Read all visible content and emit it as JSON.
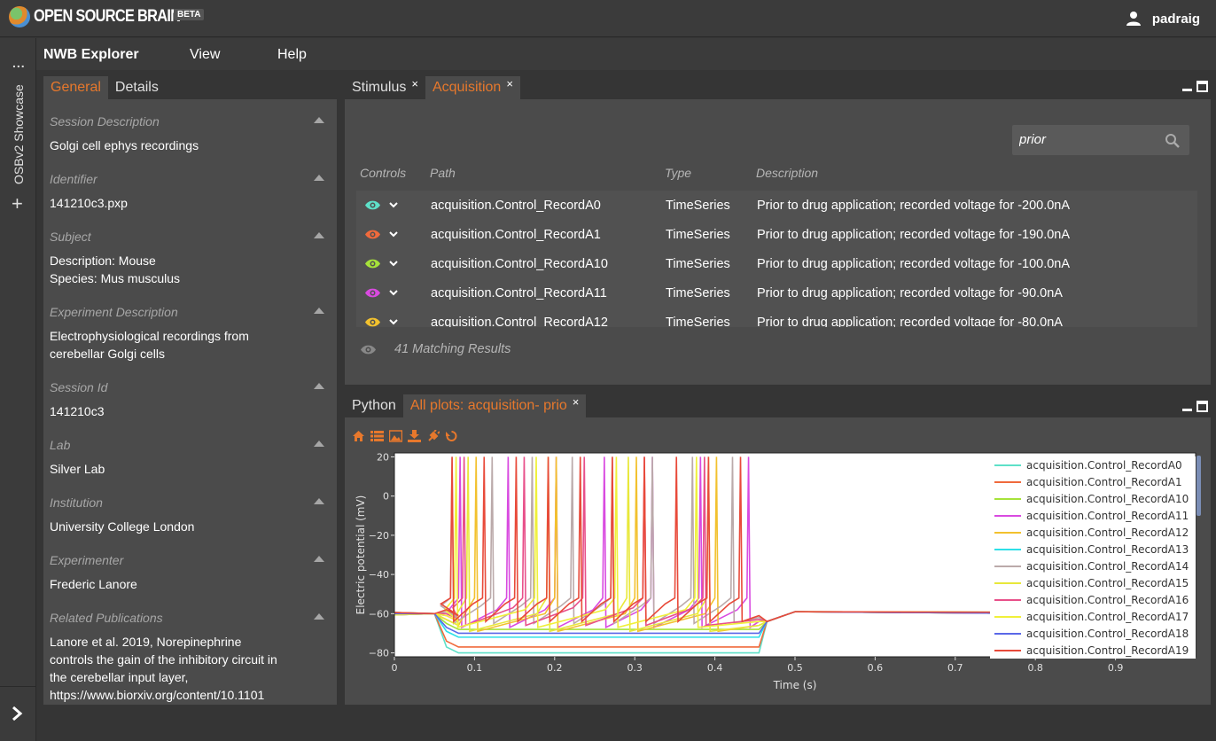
{
  "app": {
    "logo_text": "OPEN SOURCE BRAIN",
    "beta_badge": "BETA",
    "user_name": "padraig"
  },
  "rail": {
    "dots": "...",
    "workspace_label": "OSBv2 Showcase",
    "add": "+"
  },
  "menu": {
    "title": "NWB Explorer",
    "view": "View",
    "help": "Help"
  },
  "left_panel": {
    "tabs": [
      {
        "label": "General"
      },
      {
        "label": "Details"
      }
    ],
    "fields": [
      {
        "label": "Session Description",
        "value": "Golgi cell ephys recordings"
      },
      {
        "label": "Identifier",
        "value": "141210c3.pxp"
      },
      {
        "label": "Subject",
        "value": "Description: Mouse",
        "value2": "Species: Mus musculus"
      },
      {
        "label": "Experiment Description",
        "value": "Electrophysiological recordings from",
        "value2": "cerebellar Golgi cells"
      },
      {
        "label": "Session Id",
        "value": "141210c3"
      },
      {
        "label": "Lab",
        "value": "Silver Lab"
      },
      {
        "label": "Institution",
        "value": "University College London"
      },
      {
        "label": "Experimenter",
        "value": "Frederic Lanore"
      },
      {
        "label": "Related Publications",
        "value": "Lanore et al. 2019, Norepinephrine",
        "value2": "controls the gain of the inhibitory circuit in",
        "value3": "the cerebellar input layer,",
        "value4": "https://www.biorxiv.org/content/10.1101"
      }
    ]
  },
  "acq_panel": {
    "tabs": [
      {
        "label": "Stimulus",
        "close": "×"
      },
      {
        "label": "Acquisition",
        "close": "×"
      }
    ],
    "search": {
      "value": "prior"
    },
    "headers": {
      "controls": "Controls",
      "path": "Path",
      "type": "Type",
      "description": "Description"
    },
    "rows": [
      {
        "path": "acquisition.Control_RecordA0",
        "type": "TimeSeries",
        "description": "Prior to drug application; recorded voltage for -200.0nA",
        "color": "#5ee0c8"
      },
      {
        "path": "acquisition.Control_RecordA1",
        "type": "TimeSeries",
        "description": "Prior to drug application; recorded voltage for -190.0nA",
        "color": "#f06a3c"
      },
      {
        "path": "acquisition.Control_RecordA10",
        "type": "TimeSeries",
        "description": "Prior to drug application; recorded voltage for -100.0nA",
        "color": "#a6e23a"
      },
      {
        "path": "acquisition.Control_RecordA11",
        "type": "TimeSeries",
        "description": "Prior to drug application; recorded voltage for -90.0nA",
        "color": "#d94ae0"
      },
      {
        "path": "acquisition.Control_RecordA12",
        "type": "TimeSeries",
        "description": "Prior to drug application; recorded voltage for -80.0nA",
        "color": "#f2c12e"
      }
    ],
    "matching": "41 Matching Results"
  },
  "plot_panel": {
    "tabs": [
      {
        "label": "Python"
      },
      {
        "label": "All plots: acquisition- prio",
        "close": "×"
      }
    ],
    "toolbar_icons": [
      "home-icon",
      "list-icon",
      "image-icon",
      "download-icon",
      "plugin-icon",
      "reset-icon"
    ]
  },
  "chart_data": {
    "type": "line",
    "xlabel": "Time (s)",
    "ylabel": "Electric potential (mV)",
    "xlim": [
      0,
      1.0
    ],
    "ylim": [
      -82,
      22
    ],
    "xticks": [
      "0",
      "0.1",
      "0.2",
      "0.3",
      "0.4",
      "0.5",
      "0.6",
      "0.7",
      "0.8",
      "0.9"
    ],
    "yticks": [
      "20",
      "0",
      "−20",
      "−40",
      "−60",
      "−80"
    ],
    "legend_position": "top-right",
    "series": [
      {
        "name": "acquisition.Control_RecordA0",
        "color": "#5ee0c8",
        "baseline": -60,
        "step_level": -80,
        "spikes": []
      },
      {
        "name": "acquisition.Control_RecordA1",
        "color": "#f06a3c",
        "baseline": -60,
        "step_level": -77,
        "spikes": []
      },
      {
        "name": "acquisition.Control_RecordA10",
        "color": "#a6e23a",
        "baseline": -60,
        "step_level": -68,
        "spikes": []
      },
      {
        "name": "acquisition.Control_RecordA11",
        "color": "#d94ae0",
        "baseline": -60,
        "step_level": -64,
        "spikes": [
          0.08,
          0.14,
          0.2,
          0.26,
          0.32,
          0.38,
          0.44
        ]
      },
      {
        "name": "acquisition.Control_RecordA12",
        "color": "#f2c12e",
        "baseline": -60,
        "step_level": -66,
        "spikes": [
          0.1,
          0.2,
          0.3,
          0.4
        ]
      },
      {
        "name": "acquisition.Control_RecordA13",
        "color": "#2ee0e8",
        "baseline": -60,
        "step_level": -72,
        "spikes": []
      },
      {
        "name": "acquisition.Control_RecordA14",
        "color": "#bbaaaa",
        "baseline": -60,
        "step_level": -62,
        "spikes": [
          0.07,
          0.12,
          0.17,
          0.22,
          0.27,
          0.32,
          0.37,
          0.42
        ]
      },
      {
        "name": "acquisition.Control_RecordA15",
        "color": "#e8e83a",
        "baseline": -60,
        "step_level": -66,
        "spikes": [
          0.09,
          0.19,
          0.29,
          0.39
        ]
      },
      {
        "name": "acquisition.Control_RecordA16",
        "color": "#e8508a",
        "baseline": -60,
        "step_level": -63,
        "spikes": [
          0.085,
          0.16,
          0.235,
          0.31,
          0.385
        ]
      },
      {
        "name": "acquisition.Control_RecordA17",
        "color": "#f0f03a",
        "baseline": -60,
        "step_level": -64,
        "spikes": [
          0.075,
          0.175,
          0.275,
          0.375
        ]
      },
      {
        "name": "acquisition.Control_RecordA18",
        "color": "#5a68e8",
        "baseline": -60,
        "step_level": -70,
        "spikes": []
      },
      {
        "name": "acquisition.Control_RecordA19",
        "color": "#e84a3a",
        "baseline": -60,
        "step_level": -61,
        "spikes": [
          0.07,
          0.11,
          0.15,
          0.19,
          0.23,
          0.27,
          0.31,
          0.35,
          0.39,
          0.43
        ]
      }
    ]
  }
}
